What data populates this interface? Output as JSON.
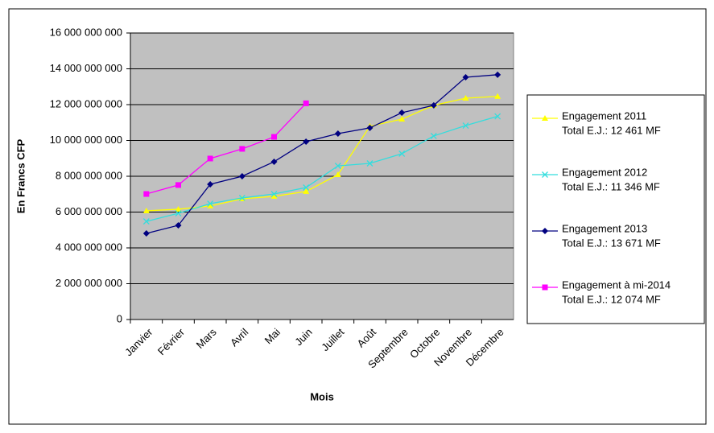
{
  "chart_data": {
    "type": "line",
    "y_label": "En Francs CFP",
    "x_label": "Mois",
    "categories": [
      "Janvier",
      "Février",
      "Mars",
      "Avril",
      "Mai",
      "Juin",
      "Juillet",
      "Août",
      "Septembre",
      "Octobre",
      "Novembre",
      "Décembre"
    ],
    "ylim": [
      0,
      16000000000
    ],
    "yticks": [
      {
        "value": 0,
        "label": "0"
      },
      {
        "value": 2000000000,
        "label": "2 000 000 000"
      },
      {
        "value": 4000000000,
        "label": "4 000 000 000"
      },
      {
        "value": 6000000000,
        "label": "6 000 000 000"
      },
      {
        "value": 8000000000,
        "label": "8 000 000 000"
      },
      {
        "value": 10000000000,
        "label": "10 000 000 000"
      },
      {
        "value": 12000000000,
        "label": "12 000 000 000"
      },
      {
        "value": 14000000000,
        "label": "14 000 000 000"
      },
      {
        "value": 16000000000,
        "label": "16 000 000 000"
      }
    ],
    "grid": true,
    "legend": "right",
    "series": [
      {
        "name": "Engagement 2011",
        "total": "Total E.J.: 12 461 MF",
        "color": "#ffff00",
        "marker": "triangle",
        "values": [
          6070000000,
          6160000000,
          6340000000,
          6740000000,
          6880000000,
          7150000000,
          8090000000,
          10790000000,
          11190000000,
          11960000000,
          12360000000,
          12461000000
        ]
      },
      {
        "name": "Engagement 2012",
        "total": "Total E.J.: 11 346 MF",
        "color": "#33dddd",
        "marker": "x",
        "values": [
          5480000000,
          5930000000,
          6470000000,
          6790000000,
          7010000000,
          7370000000,
          8580000000,
          8720000000,
          9260000000,
          10250000000,
          10830000000,
          11346000000
        ]
      },
      {
        "name": "Engagement 2013",
        "total": "Total E.J.: 13 671  MF",
        "color": "#000080",
        "marker": "diamond",
        "values": [
          4810000000,
          5260000000,
          7550000000,
          8000000000,
          8810000000,
          9930000000,
          10380000000,
          10700000000,
          11550000000,
          11960000000,
          13530000000,
          13671000000
        ]
      },
      {
        "name": "Engagement à mi-2014",
        "total": "Total E.J.: 12 074  MF",
        "color": "#ff00ff",
        "marker": "square",
        "values": [
          7010000000,
          7510000000,
          8990000000,
          9530000000,
          10200000000,
          12074000000,
          null,
          null,
          null,
          null,
          null,
          null
        ]
      }
    ]
  }
}
